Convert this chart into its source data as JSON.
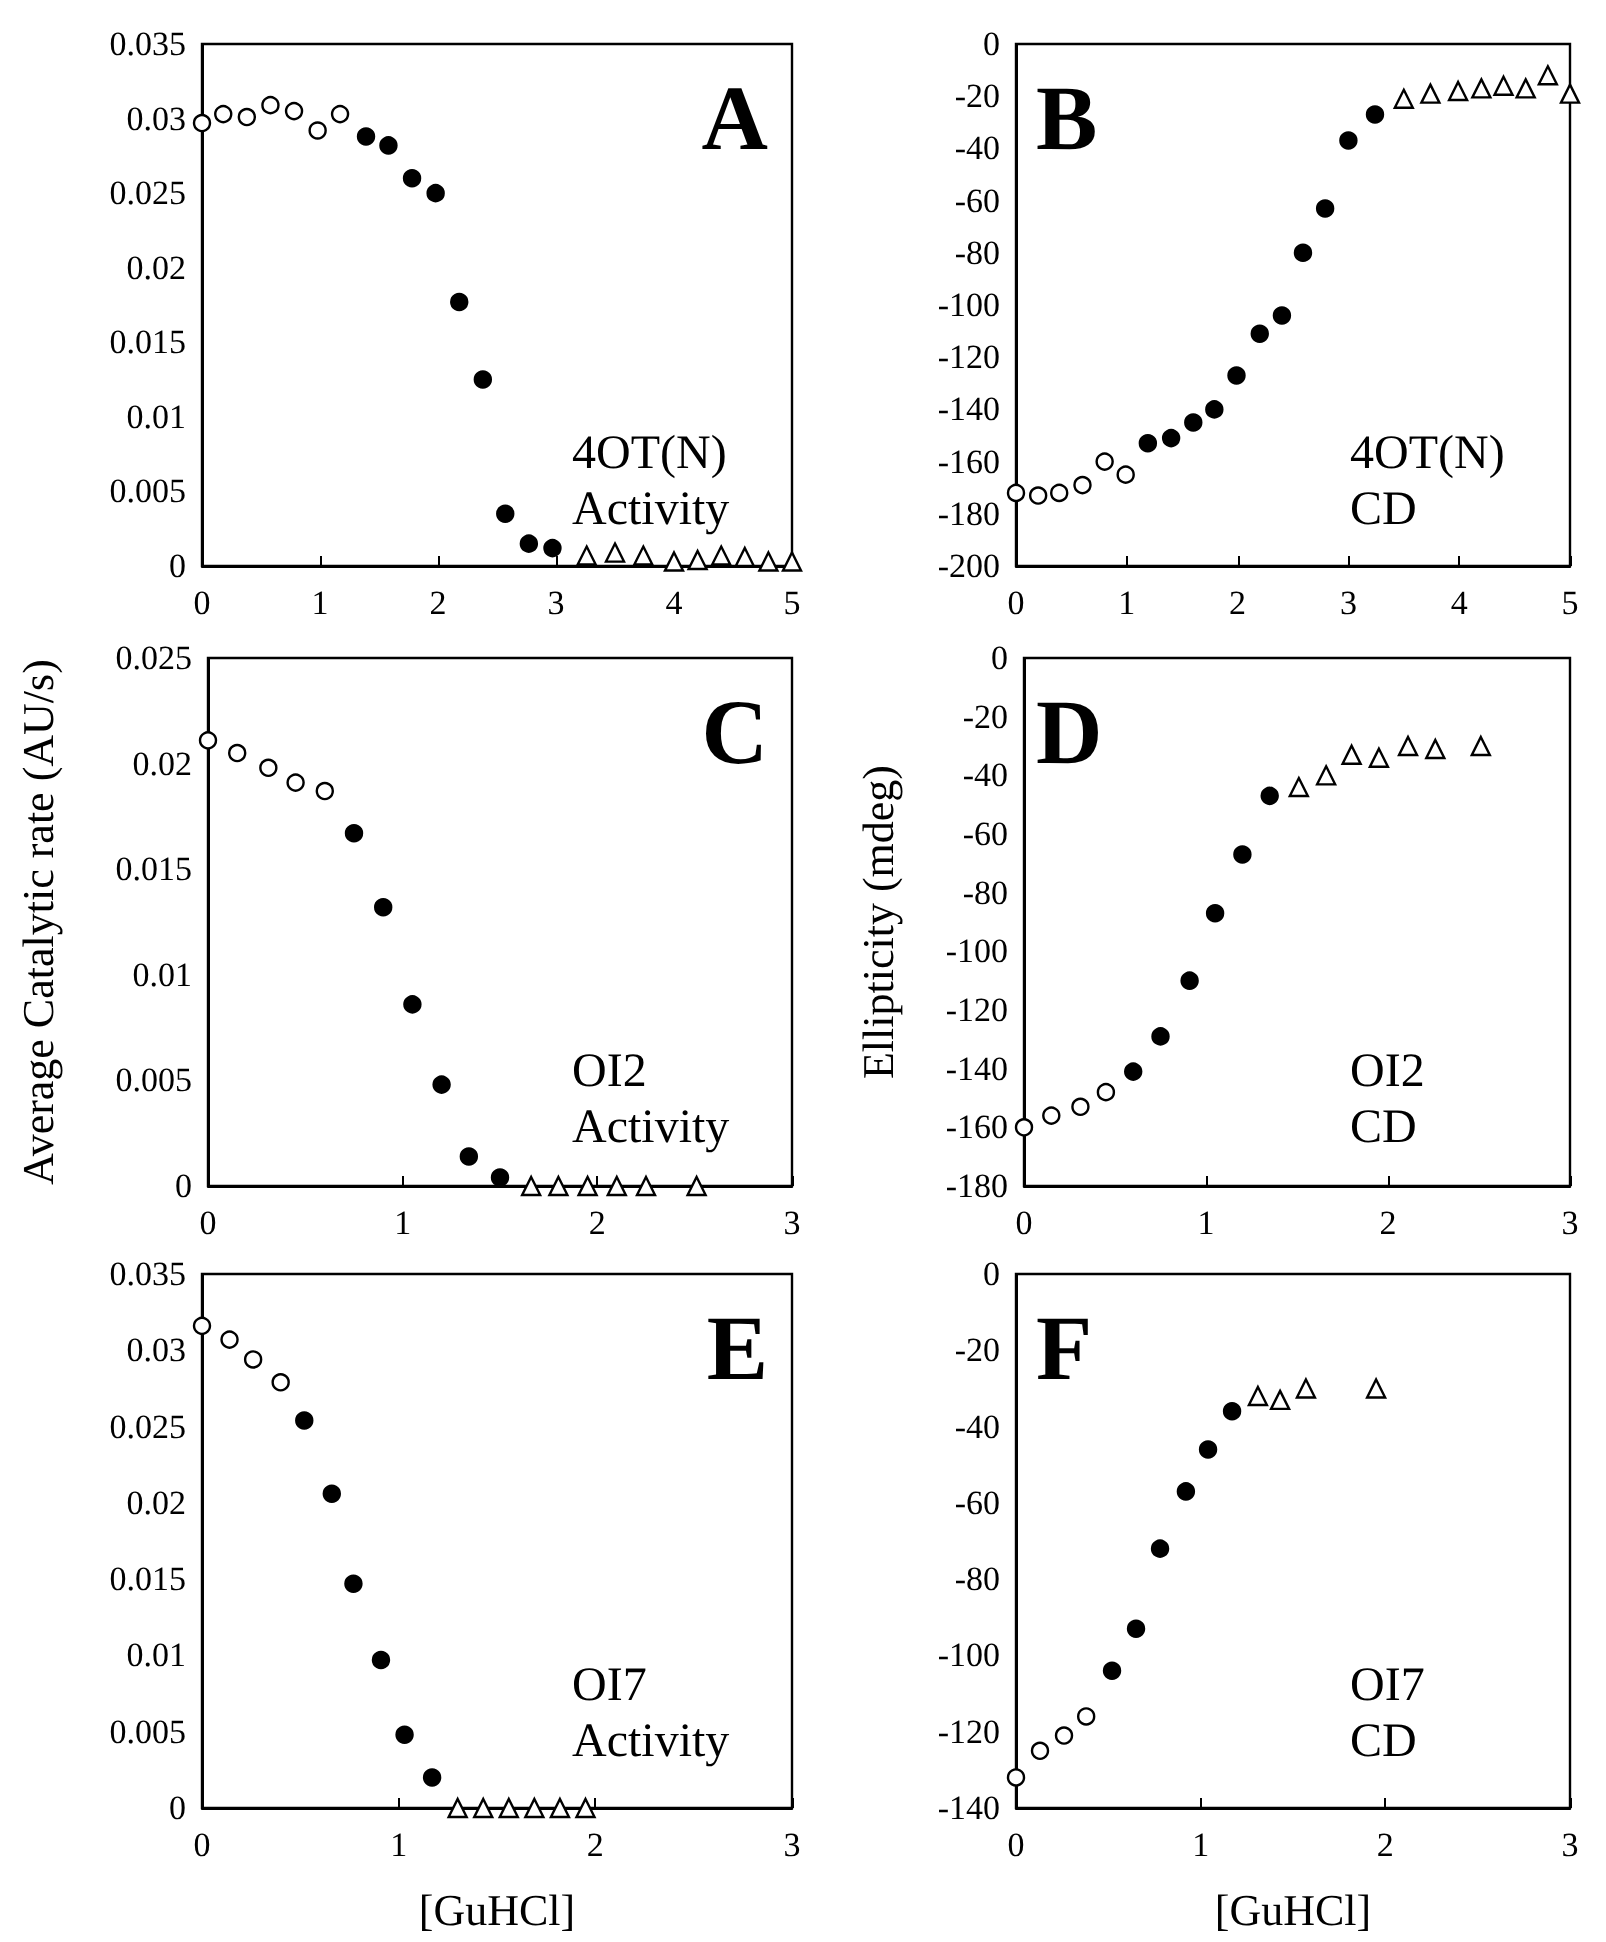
{
  "chart_data": [
    {
      "type": "scatter",
      "annotations": [
        "A",
        "4OT(N)",
        "Activity"
      ],
      "xlim": [
        0,
        5
      ],
      "xticks": [
        0,
        1,
        2,
        3,
        4,
        5
      ],
      "ylim": [
        0,
        0.035
      ],
      "yticks": [
        0,
        0.005,
        0.01,
        0.015,
        0.02,
        0.025,
        0.03,
        0.035
      ],
      "series": [
        {
          "color": "#ffffff",
          "marker": "circle",
          "x": [
            0,
            0.18,
            0.38,
            0.58,
            0.78,
            0.98,
            1.17
          ],
          "values": [
            0.0297,
            0.0303,
            0.0301,
            0.0309,
            0.0305,
            0.0292,
            0.0303
          ]
        },
        {
          "color": "#000000",
          "marker": "circle",
          "x": [
            1.39,
            1.58,
            1.78,
            1.98,
            2.18,
            2.38,
            2.57,
            2.77,
            2.97
          ],
          "values": [
            0.0288,
            0.0282,
            0.026,
            0.025,
            0.0177,
            0.0125,
            0.0035,
            0.0015,
            0.0012
          ]
        },
        {
          "color": "#ffffff",
          "marker": "triangle",
          "x": [
            3.26,
            3.5,
            3.74,
            4.0,
            4.2,
            4.4,
            4.6,
            4.8,
            5.0
          ],
          "values": [
            0.0007,
            0.0009,
            0.0007,
            0.0003,
            0.0004,
            0.0007,
            0.0006,
            0.0003,
            0.0003
          ]
        }
      ]
    },
    {
      "type": "scatter",
      "annotations": [
        "B",
        "4OT(N)",
        "CD"
      ],
      "xlim": [
        0,
        5
      ],
      "xticks": [
        0,
        1,
        2,
        3,
        4,
        5
      ],
      "ylim": [
        -200,
        0
      ],
      "yticks": [
        -200,
        -180,
        -160,
        -140,
        -120,
        -100,
        -80,
        -60,
        -40,
        -20,
        0
      ],
      "series": [
        {
          "color": "#ffffff",
          "marker": "circle",
          "x": [
            0,
            0.2,
            0.39,
            0.6,
            0.8,
            0.99
          ],
          "values": [
            -172,
            -173,
            -172,
            -169,
            -160,
            -165
          ]
        },
        {
          "color": "#000000",
          "marker": "circle",
          "x": [
            1.19,
            1.4,
            1.6,
            1.79,
            1.99,
            2.2,
            2.4,
            2.59,
            2.79,
            3.0,
            3.24
          ],
          "values": [
            -153,
            -151,
            -145,
            -140,
            -127,
            -111,
            -104,
            -80,
            -63,
            -37,
            -27
          ]
        },
        {
          "color": "#ffffff",
          "marker": "triangle",
          "x": [
            3.5,
            3.74,
            3.99,
            4.2,
            4.4,
            4.6,
            4.8,
            5.0
          ],
          "values": [
            -21,
            -19,
            -18,
            -17,
            -16,
            -17,
            -12,
            -19
          ]
        }
      ]
    },
    {
      "type": "scatter",
      "ylabel": "Average Catalytic rate (AU/s)",
      "annotations": [
        "C",
        "OI2",
        "Activity"
      ],
      "xlim": [
        0,
        3
      ],
      "xticks": [
        0,
        1,
        2,
        3
      ],
      "ylim": [
        0,
        0.025
      ],
      "yticks": [
        0,
        0.005,
        0.01,
        0.015,
        0.02,
        0.025
      ],
      "series": [
        {
          "color": "#ffffff",
          "marker": "circle",
          "x": [
            0,
            0.15,
            0.31,
            0.45,
            0.6
          ],
          "values": [
            0.0211,
            0.0205,
            0.0198,
            0.0191,
            0.0187
          ]
        },
        {
          "color": "#000000",
          "marker": "circle",
          "x": [
            0.75,
            0.9,
            1.05,
            1.2,
            1.34,
            1.5
          ],
          "values": [
            0.0167,
            0.0132,
            0.0086,
            0.0048,
            0.0014,
            0.0004
          ]
        },
        {
          "color": "#ffffff",
          "marker": "triangle",
          "x": [
            1.66,
            1.8,
            1.95,
            2.1,
            2.25,
            2.51
          ],
          "values": [
            0,
            0,
            0,
            0,
            0,
            0
          ]
        }
      ]
    },
    {
      "type": "scatter",
      "ylabel": "Ellipticity (mdeg)",
      "annotations": [
        "D",
        "OI2",
        "CD"
      ],
      "xlim": [
        0,
        3
      ],
      "xticks": [
        0,
        1,
        2,
        3
      ],
      "ylim": [
        -180,
        0
      ],
      "yticks": [
        -180,
        -160,
        -140,
        -120,
        -100,
        -80,
        -60,
        -40,
        -20,
        0
      ],
      "series": [
        {
          "color": "#ffffff",
          "marker": "circle",
          "x": [
            0,
            0.15,
            0.31,
            0.45
          ],
          "values": [
            -160,
            -156,
            -153,
            -148
          ]
        },
        {
          "color": "#000000",
          "marker": "circle",
          "x": [
            0.6,
            0.75,
            0.91,
            1.05,
            1.2,
            1.35
          ],
          "values": [
            -141,
            -129,
            -110,
            -87,
            -67,
            -47
          ]
        },
        {
          "color": "#ffffff",
          "marker": "triangle",
          "x": [
            1.51,
            1.66,
            1.8,
            1.95,
            2.11,
            2.26,
            2.51
          ],
          "values": [
            -44,
            -40,
            -33,
            -34,
            -30,
            -31,
            -30
          ]
        }
      ]
    },
    {
      "type": "scatter",
      "xlabel": "[GuHCl]",
      "annotations": [
        "E",
        "OI7",
        "Activity"
      ],
      "xlim": [
        0,
        3
      ],
      "xticks": [
        0,
        1,
        2,
        3
      ],
      "ylim": [
        0,
        0.035
      ],
      "yticks": [
        0,
        0.005,
        0.01,
        0.015,
        0.02,
        0.025,
        0.03,
        0.035
      ],
      "series": [
        {
          "color": "#ffffff",
          "marker": "circle",
          "x": [
            0,
            0.14,
            0.26,
            0.4
          ],
          "values": [
            0.0316,
            0.0307,
            0.0294,
            0.0279
          ]
        },
        {
          "color": "#000000",
          "marker": "circle",
          "x": [
            0.52,
            0.66,
            0.77,
            0.91,
            1.03,
            1.17
          ],
          "values": [
            0.0254,
            0.0206,
            0.0147,
            0.0097,
            0.0048,
            0.002
          ]
        },
        {
          "color": "#ffffff",
          "marker": "triangle",
          "x": [
            1.3,
            1.43,
            1.56,
            1.69,
            1.82,
            1.95
          ],
          "values": [
            0,
            0,
            0,
            0,
            0,
            0
          ]
        }
      ]
    },
    {
      "type": "scatter",
      "xlabel": "[GuHCl]",
      "annotations": [
        "F",
        "OI7",
        "CD"
      ],
      "xlim": [
        0,
        3
      ],
      "xticks": [
        0,
        1,
        2,
        3
      ],
      "ylim": [
        -140,
        0
      ],
      "yticks": [
        -140,
        -120,
        -100,
        -80,
        -60,
        -40,
        -20,
        0
      ],
      "series": [
        {
          "color": "#ffffff",
          "marker": "circle",
          "x": [
            0,
            0.13,
            0.26,
            0.38
          ],
          "values": [
            -132,
            -125,
            -121,
            -116
          ]
        },
        {
          "color": "#000000",
          "marker": "circle",
          "x": [
            0.52,
            0.65,
            0.78,
            0.92,
            1.04,
            1.17
          ],
          "values": [
            -104,
            -93,
            -72,
            -57,
            -46,
            -36
          ]
        },
        {
          "color": "#ffffff",
          "marker": "triangle",
          "x": [
            1.31,
            1.43,
            1.57,
            1.95
          ],
          "values": [
            -32,
            -33,
            -30,
            -30
          ]
        }
      ]
    }
  ]
}
